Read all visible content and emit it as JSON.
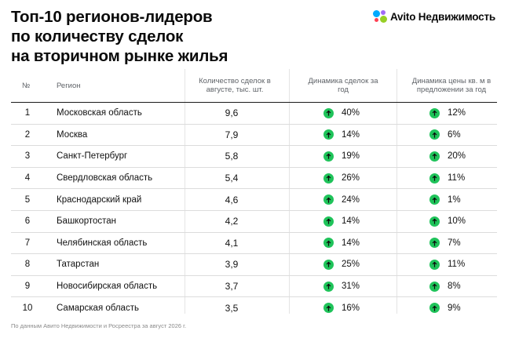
{
  "title_lines": [
    "Топ-10 регионов-лидеров",
    "по количеству сделок",
    "на вторичном рынке жилья"
  ],
  "brand": {
    "name": "Avito Недвижимость",
    "logo_colors": [
      "#00aaff",
      "#a169f7",
      "#ff4053",
      "#97cf26"
    ]
  },
  "table": {
    "headers": {
      "num": "№",
      "region": "Регион",
      "deals": "Количество сделок в августе, тыс. шт.",
      "deals_dynamics": "Динамика сделок за год",
      "price_dynamics": "Динамика цены кв. м в предложении за год"
    },
    "rows": [
      {
        "num": "1",
        "region": "Московская область",
        "deals": "9,6",
        "deals_dynamics": "40%",
        "price_dynamics": "12%"
      },
      {
        "num": "2",
        "region": "Москва",
        "deals": "7,9",
        "deals_dynamics": "14%",
        "price_dynamics": "6%"
      },
      {
        "num": "3",
        "region": "Санкт-Петербург",
        "deals": "5,8",
        "deals_dynamics": "19%",
        "price_dynamics": "20%"
      },
      {
        "num": "4",
        "region": "Свердловская область",
        "deals": "5,4",
        "deals_dynamics": "26%",
        "price_dynamics": "11%"
      },
      {
        "num": "5",
        "region": "Краснодарский край",
        "deals": "4,6",
        "deals_dynamics": "24%",
        "price_dynamics": "1%"
      },
      {
        "num": "6",
        "region": "Башкортостан",
        "deals": "4,2",
        "deals_dynamics": "14%",
        "price_dynamics": "10%"
      },
      {
        "num": "7",
        "region": "Челябинская область",
        "deals": "4,1",
        "deals_dynamics": "14%",
        "price_dynamics": "7%"
      },
      {
        "num": "8",
        "region": "Татарстан",
        "deals": "3,9",
        "deals_dynamics": "25%",
        "price_dynamics": "11%"
      },
      {
        "num": "9",
        "region": "Новосибирская область",
        "deals": "3,7",
        "deals_dynamics": "31%",
        "price_dynamics": "8%"
      },
      {
        "num": "10",
        "region": "Самарская область",
        "deals": "3,5",
        "deals_dynamics": "16%",
        "price_dynamics": "9%"
      }
    ],
    "up_arrow_icon": "arrow-up-icon",
    "up_color": "#1fc35a"
  },
  "footnote": "По данным Авито Недвижимости и Росреестра за август 2026 г."
}
